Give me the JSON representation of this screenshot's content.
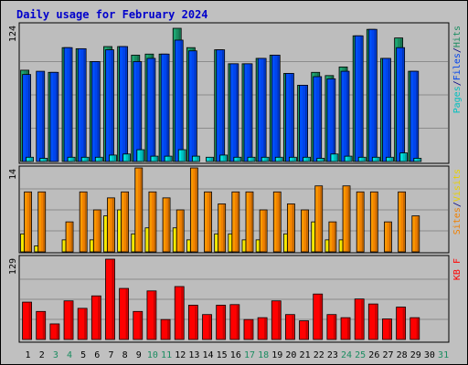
{
  "chart_data": {
    "type": "bar",
    "title": "Daily usage for February 2024",
    "categories": [
      "1",
      "2",
      "3",
      "4",
      "5",
      "6",
      "7",
      "8",
      "9",
      "10",
      "11",
      "12",
      "13",
      "14",
      "15",
      "16",
      "17",
      "18",
      "19",
      "20",
      "21",
      "22",
      "23",
      "24",
      "25",
      "26",
      "27",
      "28",
      "29",
      "30",
      "31"
    ],
    "weekend_days": [
      "3",
      "4",
      "10",
      "11",
      "17",
      "18",
      "24",
      "25",
      "31"
    ],
    "panels": [
      {
        "id": "top",
        "ymax_label": "124",
        "ymax": 124,
        "legend": [
          {
            "text": "Pages",
            "color": "#00c0c0"
          },
          {
            "text": "/",
            "color": "#000080"
          },
          {
            "text": "Files",
            "color": "#0044ee"
          },
          {
            "text": "/",
            "color": "#000080"
          },
          {
            "text": "Hits",
            "color": "#1a8c60"
          }
        ],
        "series": [
          {
            "name": "Hits",
            "color": "#1a8c60",
            "values": [
              85,
              0,
              83,
              106,
              105,
              93,
              107,
              107,
              99,
              100,
              100,
              124,
              106,
              0,
              104,
              91,
              91,
              96,
              99,
              82,
              71,
              83,
              80,
              88,
              117,
              123,
              96,
              115,
              84
            ]
          },
          {
            "name": "Files",
            "color": "#0044ee",
            "values": [
              81,
              84,
              83,
              106,
              105,
              93,
              104,
              107,
              93,
              96,
              100,
              113,
              103,
              0,
              104,
              91,
              91,
              96,
              99,
              82,
              71,
              79,
              77,
              84,
              117,
              123,
              96,
              106,
              84
            ]
          },
          {
            "name": "Pages",
            "color": "#00c0c0",
            "values": [
              4,
              3,
              0,
              4,
              4,
              4,
              6,
              7,
              11,
              5,
              5,
              11,
              5,
              4,
              6,
              4,
              4,
              4,
              4,
              4,
              4,
              3,
              7,
              5,
              4,
              4,
              4,
              8,
              3
            ]
          }
        ]
      },
      {
        "id": "mid",
        "ymax_label": "14",
        "ymax": 14,
        "legend": [
          {
            "text": "Sites",
            "color": "#f08000"
          },
          {
            "text": "/",
            "color": "#000080"
          },
          {
            "text": "Visits",
            "color": "#e8d000"
          }
        ],
        "series": [
          {
            "name": "Visits",
            "color": "#f08000",
            "values": [
              10,
              10,
              0,
              5,
              10,
              7,
              9,
              10,
              14,
              10,
              9,
              7,
              14,
              10,
              8,
              10,
              10,
              7,
              10,
              8,
              7,
              11,
              5,
              11,
              10,
              10,
              5,
              10,
              6
            ]
          },
          {
            "name": "Sites",
            "color": "#f0e000",
            "values": [
              3,
              1,
              0,
              2,
              0,
              2,
              6,
              7,
              3,
              4,
              0,
              4,
              2,
              0,
              3,
              3,
              2,
              2,
              0,
              3,
              0,
              5,
              2,
              2,
              0,
              0,
              0,
              0,
              0
            ]
          }
        ]
      },
      {
        "id": "bot",
        "ymax_label": "129",
        "ymax": 129,
        "legend": [
          {
            "text": "KB F",
            "color": "#ff0000"
          }
        ],
        "series": [
          {
            "name": "KB F",
            "color": "#ff0000",
            "values": [
              60,
              45,
              25,
              62,
              50,
              70,
              129,
              82,
              45,
              78,
              32,
              85,
              55,
              40,
              55,
              56,
              32,
              35,
              62,
              40,
              30,
              73,
              40,
              35,
              65,
              57,
              33,
              52,
              35
            ]
          }
        ]
      }
    ]
  }
}
